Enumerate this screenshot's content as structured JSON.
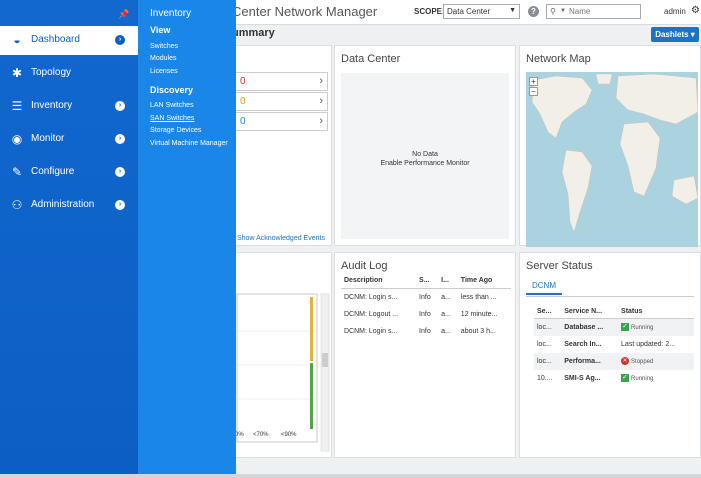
{
  "header": {
    "app_title": "Center Network Manager",
    "scope_label": "SCOPE:",
    "scope_value": "Data Center",
    "search_placeholder": "Name",
    "user": "admin"
  },
  "page": {
    "title": "ummary",
    "dashlets_label": "Dashlets ▾"
  },
  "events": {
    "rows": [
      {
        "count": "0",
        "color": "#d0322c"
      },
      {
        "count": "0",
        "color": "#e39b1b"
      },
      {
        "count": "0",
        "color": "#1a86e8"
      }
    ],
    "ack_link": "Show Acknowledged Events"
  },
  "data_center": {
    "title": "Data Center",
    "no_data": "No Data",
    "hint": "Enable Performance Monitor"
  },
  "network_map": {
    "title": "Network Map",
    "zoom_in": "+",
    "zoom_out": "−"
  },
  "chart_panel": {
    "x_ticks": [
      "0%",
      "<70%",
      "<90%"
    ]
  },
  "audit_log": {
    "title": "Audit Log",
    "columns": [
      "Description",
      "S...",
      "I...",
      "Time Ago"
    ],
    "rows": [
      [
        "DCNM: Login s...",
        "Info",
        "a...",
        "less than ..."
      ],
      [
        "DCNM: Logout ...",
        "Info",
        "a...",
        "12 minute..."
      ],
      [
        "DCNM: Login s...",
        "Info",
        "a...",
        "about 3 h..."
      ]
    ]
  },
  "server_status": {
    "title": "Server Status",
    "tab": "DCNM",
    "columns": [
      "Se...",
      "Service N...",
      "Status"
    ],
    "rows": [
      {
        "server": "loc...",
        "service": "Database ...",
        "status": "Running",
        "kind": "ok"
      },
      {
        "server": "loc...",
        "service": "Search In...",
        "status": "Last updated: 2...",
        "kind": "text"
      },
      {
        "server": "loc...",
        "service": "Performa...",
        "status": "Stopped",
        "kind": "stop"
      },
      {
        "server": "10....",
        "service": "SMI-S Ag...",
        "status": "Running",
        "kind": "ok"
      }
    ]
  },
  "nav": {
    "items": [
      {
        "label": "Dashboard",
        "icon": "dashboard-icon"
      },
      {
        "label": "Topology",
        "icon": "topology-icon"
      },
      {
        "label": "Inventory",
        "icon": "database-icon"
      },
      {
        "label": "Monitor",
        "icon": "eye-icon"
      },
      {
        "label": "Configure",
        "icon": "wrench-icon"
      },
      {
        "label": "Administration",
        "icon": "admin-user-icon"
      }
    ]
  },
  "flyout": {
    "title": "Inventory",
    "view_heading": "View",
    "view_links": [
      "Switches",
      "Modules",
      "Licenses"
    ],
    "discovery_heading": "Discovery",
    "discovery_links": [
      "LAN Switches",
      "SAN Switches",
      "Storage Devices",
      "Virtual Machine Manager"
    ]
  }
}
